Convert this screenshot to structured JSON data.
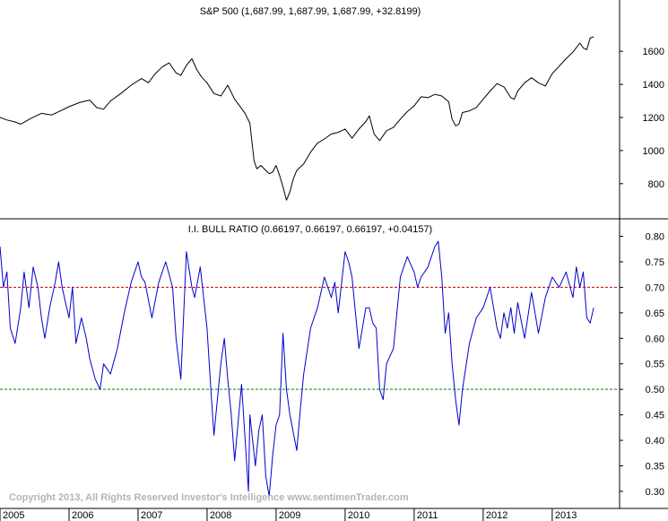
{
  "chart_data": [
    {
      "type": "line",
      "title": "S&P 500 (1,687.99, 1,687.99, 1,687.99, +32.8199)",
      "series": [
        {
          "color": "#000000",
          "x": [
            2005.0,
            2005.1,
            2005.2,
            2005.3,
            2005.45,
            2005.6,
            2005.75,
            2005.9,
            2006.0,
            2006.15,
            2006.3,
            2006.4,
            2006.5,
            2006.6,
            2006.75,
            2006.9,
            2007.05,
            2007.15,
            2007.25,
            2007.35,
            2007.45,
            2007.55,
            2007.62,
            2007.7,
            2007.78,
            2007.85,
            2007.92,
            2008.0,
            2008.1,
            2008.2,
            2008.3,
            2008.4,
            2008.5,
            2008.55,
            2008.62,
            2008.68,
            2008.72,
            2008.78,
            2008.85,
            2008.9,
            2008.95,
            2009.0,
            2009.05,
            2009.1,
            2009.15,
            2009.2,
            2009.25,
            2009.3,
            2009.4,
            2009.5,
            2009.6,
            2009.7,
            2009.8,
            2009.9,
            2010.0,
            2010.1,
            2010.2,
            2010.3,
            2010.35,
            2010.42,
            2010.5,
            2010.6,
            2010.7,
            2010.8,
            2010.9,
            2011.0,
            2011.1,
            2011.2,
            2011.3,
            2011.4,
            2011.5,
            2011.55,
            2011.6,
            2011.65,
            2011.7,
            2011.8,
            2011.9,
            2012.0,
            2012.1,
            2012.2,
            2012.3,
            2012.4,
            2012.45,
            2012.5,
            2012.6,
            2012.7,
            2012.8,
            2012.9,
            2013.0,
            2013.1,
            2013.2,
            2013.3,
            2013.4,
            2013.45,
            2013.5,
            2013.55,
            2013.6
          ],
          "values": [
            1200,
            1185,
            1175,
            1160,
            1195,
            1225,
            1215,
            1245,
            1265,
            1290,
            1305,
            1260,
            1250,
            1300,
            1345,
            1395,
            1435,
            1410,
            1465,
            1505,
            1530,
            1470,
            1455,
            1515,
            1555,
            1490,
            1445,
            1410,
            1345,
            1330,
            1395,
            1310,
            1255,
            1225,
            1165,
            940,
            890,
            910,
            880,
            860,
            870,
            910,
            850,
            780,
            700,
            750,
            830,
            880,
            920,
            990,
            1045,
            1070,
            1100,
            1110,
            1130,
            1075,
            1130,
            1175,
            1210,
            1100,
            1060,
            1120,
            1140,
            1190,
            1235,
            1270,
            1325,
            1320,
            1340,
            1330,
            1295,
            1190,
            1150,
            1160,
            1230,
            1240,
            1260,
            1310,
            1360,
            1405,
            1385,
            1320,
            1310,
            1360,
            1410,
            1440,
            1410,
            1390,
            1465,
            1510,
            1555,
            1595,
            1650,
            1620,
            1610,
            1680,
            1688
          ]
        }
      ],
      "ylim": [
        620,
        1780
      ],
      "y_ticks": [
        "800",
        "1000",
        "1200",
        "1400",
        "1600"
      ]
    },
    {
      "type": "line",
      "title": "I.I. BULL RATIO (0.66197, 0.66197, 0.66197, +0.04157)",
      "series": [
        {
          "color": "#0000cc",
          "x": [
            2005.0,
            2005.05,
            2005.1,
            2005.15,
            2005.22,
            2005.3,
            2005.35,
            2005.42,
            2005.48,
            2005.55,
            2005.6,
            2005.65,
            2005.72,
            2005.8,
            2005.85,
            2005.9,
            2005.95,
            2006.0,
            2006.05,
            2006.1,
            2006.18,
            2006.25,
            2006.3,
            2006.38,
            2006.45,
            2006.5,
            2006.6,
            2006.7,
            2006.8,
            2006.9,
            2007.0,
            2007.05,
            2007.1,
            2007.2,
            2007.3,
            2007.4,
            2007.5,
            2007.55,
            2007.62,
            2007.7,
            2007.78,
            2007.82,
            2007.9,
            2008.0,
            2008.05,
            2008.1,
            2008.2,
            2008.25,
            2008.3,
            2008.35,
            2008.4,
            2008.5,
            2008.6,
            2008.62,
            2008.7,
            2008.75,
            2008.8,
            2008.85,
            2008.9,
            2008.95,
            2009.0,
            2009.05,
            2009.1,
            2009.15,
            2009.2,
            2009.3,
            2009.35,
            2009.4,
            2009.5,
            2009.6,
            2009.7,
            2009.8,
            2009.85,
            2009.9,
            2010.0,
            2010.05,
            2010.1,
            2010.2,
            2010.3,
            2010.35,
            2010.4,
            2010.45,
            2010.5,
            2010.55,
            2010.6,
            2010.7,
            2010.8,
            2010.9,
            2011.0,
            2011.05,
            2011.1,
            2011.2,
            2011.3,
            2011.35,
            2011.4,
            2011.45,
            2011.5,
            2011.55,
            2011.6,
            2011.65,
            2011.7,
            2011.8,
            2011.9,
            2012.0,
            2012.1,
            2012.2,
            2012.25,
            2012.3,
            2012.35,
            2012.4,
            2012.45,
            2012.5,
            2012.6,
            2012.7,
            2012.8,
            2012.9,
            2013.0,
            2013.1,
            2013.2,
            2013.3,
            2013.35,
            2013.4,
            2013.45,
            2013.5,
            2013.55,
            2013.6
          ],
          "values": [
            0.78,
            0.7,
            0.73,
            0.62,
            0.59,
            0.66,
            0.73,
            0.66,
            0.74,
            0.7,
            0.64,
            0.6,
            0.66,
            0.71,
            0.75,
            0.7,
            0.67,
            0.64,
            0.7,
            0.59,
            0.64,
            0.6,
            0.56,
            0.52,
            0.5,
            0.55,
            0.53,
            0.58,
            0.65,
            0.71,
            0.75,
            0.72,
            0.71,
            0.64,
            0.71,
            0.75,
            0.7,
            0.6,
            0.52,
            0.77,
            0.7,
            0.68,
            0.74,
            0.62,
            0.51,
            0.41,
            0.55,
            0.6,
            0.52,
            0.45,
            0.36,
            0.51,
            0.3,
            0.45,
            0.35,
            0.42,
            0.45,
            0.33,
            0.29,
            0.37,
            0.43,
            0.45,
            0.61,
            0.5,
            0.45,
            0.38,
            0.46,
            0.53,
            0.62,
            0.66,
            0.72,
            0.68,
            0.71,
            0.65,
            0.77,
            0.75,
            0.72,
            0.58,
            0.66,
            0.66,
            0.63,
            0.62,
            0.5,
            0.48,
            0.55,
            0.58,
            0.72,
            0.76,
            0.73,
            0.7,
            0.72,
            0.74,
            0.78,
            0.79,
            0.72,
            0.61,
            0.65,
            0.55,
            0.48,
            0.43,
            0.5,
            0.59,
            0.64,
            0.66,
            0.7,
            0.62,
            0.6,
            0.65,
            0.62,
            0.66,
            0.61,
            0.67,
            0.6,
            0.69,
            0.61,
            0.68,
            0.72,
            0.7,
            0.73,
            0.68,
            0.74,
            0.7,
            0.73,
            0.64,
            0.63,
            0.66
          ]
        }
      ],
      "ylim": [
        0.27,
        0.815
      ],
      "y_ticks": [
        "0.30",
        "0.35",
        "0.40",
        "0.45",
        "0.50",
        "0.55",
        "0.60",
        "0.65",
        "0.70",
        "0.75",
        "0.80"
      ],
      "reference_lines": [
        {
          "value": 0.7,
          "color": "#cc0000",
          "style": "dashed"
        },
        {
          "value": 0.5,
          "color": "#008800",
          "style": "dashed"
        }
      ]
    }
  ],
  "x_axis": {
    "range": [
      2005.0,
      2013.95
    ],
    "ticks": [
      "2005",
      "2006",
      "2007",
      "2008",
      "2009",
      "2010",
      "2011",
      "2012",
      "2013"
    ]
  },
  "copyright": "Copyright 2013, All Rights Reserved  Investor's Intelligence  www.sentimenTrader.com"
}
